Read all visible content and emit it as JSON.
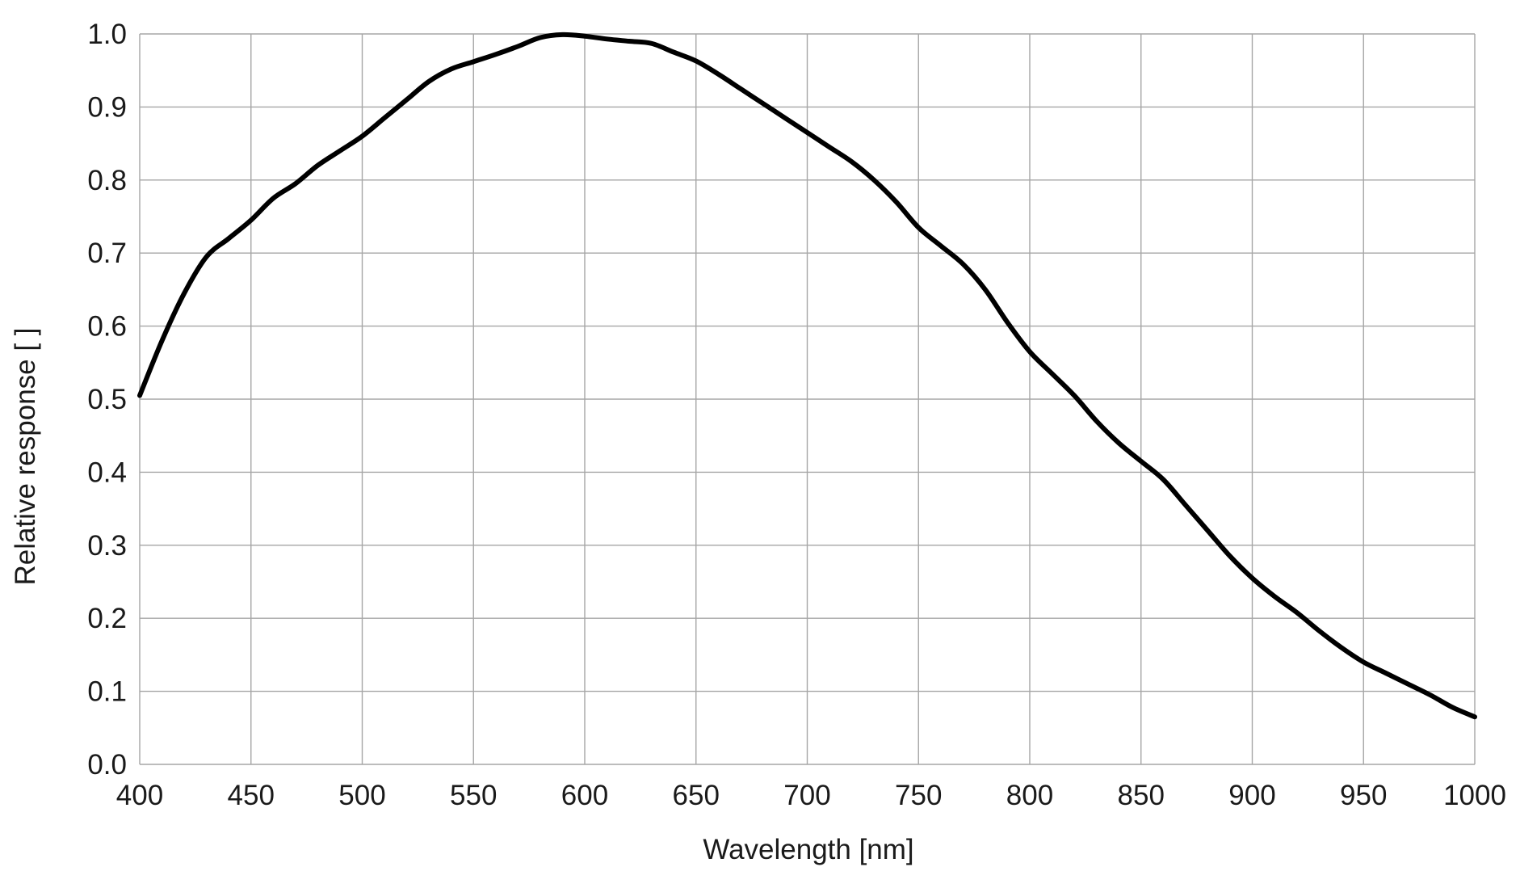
{
  "chart_data": {
    "type": "line",
    "title": "",
    "xlabel": "Wavelength [nm]",
    "ylabel": "Relative response [ ]",
    "xlim": [
      400,
      1000
    ],
    "ylim": [
      0.0,
      1.0
    ],
    "x_ticks": [
      "400",
      "450",
      "500",
      "550",
      "600",
      "650",
      "700",
      "750",
      "800",
      "850",
      "900",
      "950",
      "1000"
    ],
    "y_ticks": [
      "0.0",
      "0.1",
      "0.2",
      "0.3",
      "0.4",
      "0.5",
      "0.6",
      "0.7",
      "0.8",
      "0.9",
      "1.0"
    ],
    "grid": true,
    "legend": "none",
    "series": [
      {
        "color": "#000000",
        "x": [
          400,
          410,
          420,
          430,
          440,
          450,
          460,
          470,
          480,
          490,
          500,
          510,
          520,
          530,
          540,
          550,
          560,
          570,
          580,
          590,
          600,
          610,
          620,
          630,
          640,
          650,
          660,
          670,
          680,
          690,
          700,
          710,
          720,
          730,
          740,
          750,
          760,
          770,
          780,
          790,
          800,
          810,
          820,
          830,
          840,
          850,
          860,
          870,
          880,
          890,
          900,
          910,
          920,
          930,
          940,
          950,
          960,
          970,
          980,
          990,
          1000
        ],
        "y": [
          0.505,
          0.58,
          0.645,
          0.695,
          0.72,
          0.745,
          0.775,
          0.795,
          0.82,
          0.84,
          0.86,
          0.885,
          0.91,
          0.935,
          0.952,
          0.962,
          0.972,
          0.983,
          0.995,
          0.999,
          0.997,
          0.993,
          0.99,
          0.987,
          0.975,
          0.963,
          0.945,
          0.925,
          0.905,
          0.885,
          0.865,
          0.845,
          0.825,
          0.8,
          0.77,
          0.735,
          0.71,
          0.685,
          0.65,
          0.605,
          0.565,
          0.535,
          0.505,
          0.47,
          0.44,
          0.415,
          0.39,
          0.355,
          0.32,
          0.285,
          0.255,
          0.23,
          0.208,
          0.183,
          0.16,
          0.14,
          0.125,
          0.11,
          0.095,
          0.078,
          0.065
        ]
      }
    ]
  }
}
